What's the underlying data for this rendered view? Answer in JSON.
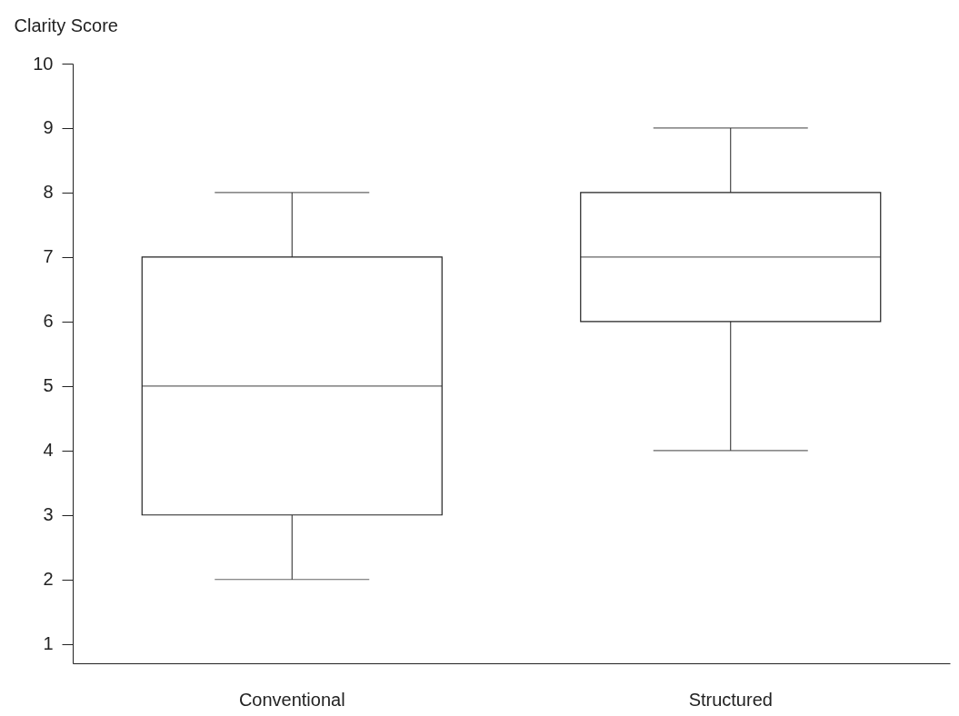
{
  "chart_data": {
    "type": "box",
    "ylabel": "Clarity Score",
    "categories": [
      "Conventional",
      "Structured"
    ],
    "boxes": [
      {
        "low": 2,
        "q1": 3,
        "median": 5,
        "q3": 7,
        "high": 8
      },
      {
        "low": 4,
        "q1": 6,
        "median": 7,
        "q3": 8,
        "high": 9
      }
    ],
    "ylim": [
      0.7,
      10
    ],
    "yticks": [
      1,
      2,
      3,
      4,
      5,
      6,
      7,
      8,
      9,
      10
    ]
  }
}
